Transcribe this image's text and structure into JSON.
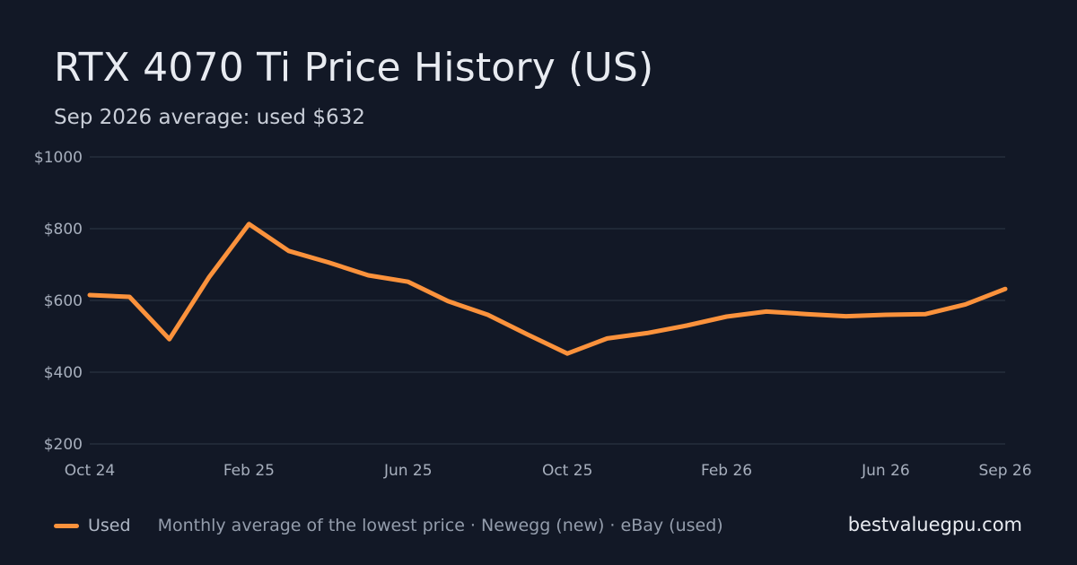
{
  "title": "RTX 4070 Ti Price History (US)",
  "subtitle": "Sep 2026 average: used $632",
  "brand": "bestvaluegpu.com",
  "footer": {
    "legend_label": "Used",
    "source_note": "Monthly average of the lowest price · Newegg (new) · eBay (used)"
  },
  "colors": {
    "background": "#121826",
    "grid": "#252d3b",
    "used_line": "#fb923c",
    "axis_text": "#a7afbd"
  },
  "chart_data": {
    "type": "line",
    "title": "RTX 4070 Ti Price History (US)",
    "xlabel": "",
    "ylabel": "",
    "ylim": [
      200,
      1000
    ],
    "yticks": [
      200,
      400,
      600,
      800,
      1000
    ],
    "ytick_labels": [
      "$200",
      "$400",
      "$600",
      "$800",
      "$1000"
    ],
    "xlim": [
      "2024-10",
      "2026-09"
    ],
    "xticks": [
      "2024-10",
      "2025-02",
      "2025-06",
      "2025-10",
      "2026-02",
      "2026-06",
      "2026-09"
    ],
    "xtick_labels": [
      "Oct 24",
      "Feb 25",
      "Jun 25",
      "Oct 25",
      "Feb 26",
      "Jun 26",
      "Sep 26"
    ],
    "grid": true,
    "legend": "bottom-left",
    "series": [
      {
        "name": "Used",
        "x": [
          "2024-10",
          "2024-11",
          "2024-12",
          "2025-01",
          "2025-02",
          "2025-03",
          "2025-04",
          "2025-05",
          "2025-06",
          "2025-07",
          "2025-08",
          "2025-09",
          "2025-10",
          "2025-11",
          "2025-12",
          "2026-01",
          "2026-02",
          "2026-03",
          "2026-04",
          "2026-05",
          "2026-06",
          "2026-07",
          "2026-08",
          "2026-09"
        ],
        "y": [
          615,
          610,
          492,
          665,
          813,
          738,
          706,
          670,
          652,
          598,
          560,
          505,
          452,
          494,
          509,
          530,
          555,
          569,
          562,
          556,
          560,
          562,
          589,
          632
        ]
      }
    ]
  }
}
